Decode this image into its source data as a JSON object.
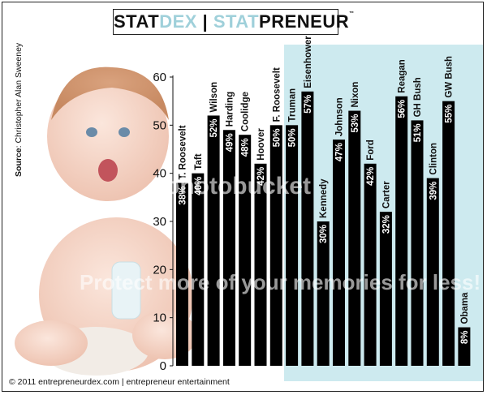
{
  "banner": {
    "part1": "STAT",
    "part2": "DEX",
    "sep": " | ",
    "part3": "STAT",
    "part4": "PRENEUR",
    "tm": "™"
  },
  "source": {
    "label": "Source",
    "author": ": Christopher Alan Sweeney"
  },
  "copyright": "© 2011 entrepreneurdex.com | entrepreneur entertainment",
  "watermark": {
    "line1": "photobucket",
    "line2": "Protect more of your memories for less!"
  },
  "colors": {
    "bar": "#000000",
    "panel": "#cdeaef",
    "banner_accent": "#9fd0da"
  },
  "chart_data": {
    "type": "bar",
    "title": "",
    "xlabel": "",
    "ylabel": "",
    "ylim": [
      0,
      60
    ],
    "yticks": [
      0,
      10,
      20,
      30,
      40,
      50,
      60
    ],
    "categories": [
      "T. Roosevelt",
      "Taft",
      "Wilson",
      "Harding",
      "Coolidge",
      "Hoover",
      "F. Roosevelt",
      "Truman",
      "Eisenhower",
      "Kennedy",
      "Johnson",
      "Nixon",
      "Ford",
      "Carter",
      "Reagan",
      "GH Bush",
      "Clinton",
      "GW Bush",
      "Obama"
    ],
    "values": [
      38,
      40,
      52,
      49,
      48,
      42,
      50,
      50,
      57,
      30,
      47,
      53,
      42,
      32,
      56,
      51,
      39,
      55,
      8
    ],
    "value_labels": [
      "38%",
      "40%",
      "52%",
      "49%",
      "48%",
      "42%",
      "50%",
      "50%",
      "57%",
      "30%",
      "47%",
      "53%",
      "42%",
      "32%",
      "56%",
      "51%",
      "39%",
      "55%",
      "8%"
    ]
  }
}
